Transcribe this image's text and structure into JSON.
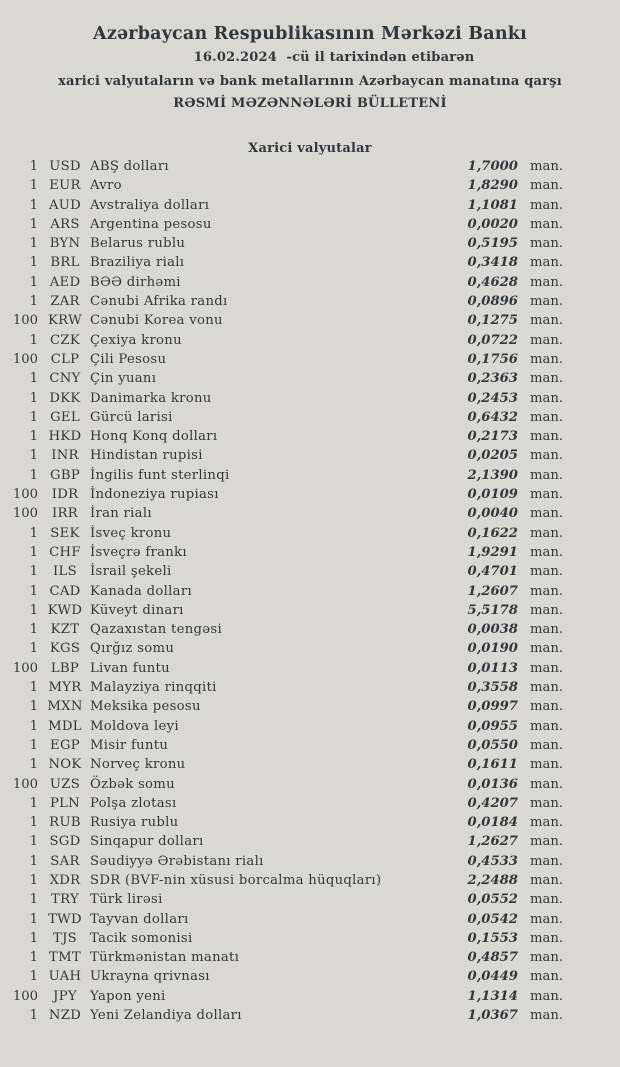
{
  "header": {
    "bank_name": "Azərbaycan Respublikasının Mərkəzi Bankı",
    "date_line": "16.02.2024  -cü il tarixindən etibarən",
    "subtitle_line1": "xarici valyutaların və bank metallarının Azərbaycan manatına qarşı",
    "subtitle_line2": "RƏSMİ MƏZƏNNƏLƏRİ BÜLLETENİ"
  },
  "section": {
    "title": "Xarici valyutalar"
  },
  "colors": {
    "background": "#d9d8d4",
    "text": "#32373c"
  },
  "rates": [
    {
      "qty": "1",
      "code": "USD",
      "name": "ABŞ dolları",
      "rate": "1,7000",
      "unit": "man."
    },
    {
      "qty": "1",
      "code": "EUR",
      "name": "Avro",
      "rate": "1,8290",
      "unit": "man."
    },
    {
      "qty": "1",
      "code": "AUD",
      "name": "Avstraliya dolları",
      "rate": "1,1081",
      "unit": "man."
    },
    {
      "qty": "1",
      "code": "ARS",
      "name": "Argentina pesosu",
      "rate": "0,0020",
      "unit": "man."
    },
    {
      "qty": "1",
      "code": "BYN",
      "name": "Belarus rublu",
      "rate": "0,5195",
      "unit": "man."
    },
    {
      "qty": "1",
      "code": "BRL",
      "name": "Braziliya rialı",
      "rate": "0,3418",
      "unit": "man."
    },
    {
      "qty": "1",
      "code": "AED",
      "name": "BƏƏ dirhəmi",
      "rate": "0,4628",
      "unit": "man."
    },
    {
      "qty": "1",
      "code": "ZAR",
      "name": "Cənubi Afrika randı",
      "rate": "0,0896",
      "unit": "man."
    },
    {
      "qty": "100",
      "code": "KRW",
      "name": "Cənubi Korea vonu",
      "rate": "0,1275",
      "unit": "man."
    },
    {
      "qty": "1",
      "code": "CZK",
      "name": "Çexiya kronu",
      "rate": "0,0722",
      "unit": "man."
    },
    {
      "qty": "100",
      "code": "CLP",
      "name": "Çili Pesosu",
      "rate": "0,1756",
      "unit": "man."
    },
    {
      "qty": "1",
      "code": "CNY",
      "name": "Çin yuanı",
      "rate": "0,2363",
      "unit": "man."
    },
    {
      "qty": "1",
      "code": "DKK",
      "name": "Danimarka kronu",
      "rate": "0,2453",
      "unit": "man."
    },
    {
      "qty": "1",
      "code": "GEL",
      "name": "Gürcü larisi",
      "rate": "0,6432",
      "unit": "man."
    },
    {
      "qty": "1",
      "code": "HKD",
      "name": "Honq Konq dolları",
      "rate": "0,2173",
      "unit": "man."
    },
    {
      "qty": "1",
      "code": "INR",
      "name": "Hindistan rupisi",
      "rate": "0,0205",
      "unit": "man."
    },
    {
      "qty": "1",
      "code": "GBP",
      "name": "İngilis funt sterlinqi",
      "rate": "2,1390",
      "unit": "man."
    },
    {
      "qty": "100",
      "code": "IDR",
      "name": "İndoneziya rupiası",
      "rate": "0,0109",
      "unit": "man."
    },
    {
      "qty": "100",
      "code": "IRR",
      "name": "İran rialı",
      "rate": "0,0040",
      "unit": "man."
    },
    {
      "qty": "1",
      "code": "SEK",
      "name": "İsveç kronu",
      "rate": "0,1622",
      "unit": "man."
    },
    {
      "qty": "1",
      "code": "CHF",
      "name": "İsveçrə frankı",
      "rate": "1,9291",
      "unit": "man."
    },
    {
      "qty": "1",
      "code": "ILS",
      "name": "İsrail şekeli",
      "rate": "0,4701",
      "unit": "man."
    },
    {
      "qty": "1",
      "code": "CAD",
      "name": "Kanada dolları",
      "rate": "1,2607",
      "unit": "man."
    },
    {
      "qty": "1",
      "code": "KWD",
      "name": "Küveyt dinarı",
      "rate": "5,5178",
      "unit": "man."
    },
    {
      "qty": "1",
      "code": "KZT",
      "name": "Qazaxıstan tengəsi",
      "rate": "0,0038",
      "unit": "man."
    },
    {
      "qty": "1",
      "code": "KGS",
      "name": "Qırğız somu",
      "rate": "0,0190",
      "unit": "man."
    },
    {
      "qty": "100",
      "code": "LBP",
      "name": "Livan funtu",
      "rate": "0,0113",
      "unit": "man."
    },
    {
      "qty": "1",
      "code": "MYR",
      "name": "Malayziya rinqqiti",
      "rate": "0,3558",
      "unit": "man."
    },
    {
      "qty": "1",
      "code": "MXN",
      "name": "Meksika pesosu",
      "rate": "0,0997",
      "unit": "man."
    },
    {
      "qty": "1",
      "code": "MDL",
      "name": "Moldova leyi",
      "rate": "0,0955",
      "unit": "man."
    },
    {
      "qty": "1",
      "code": "EGP",
      "name": "Misir funtu",
      "rate": "0,0550",
      "unit": "man."
    },
    {
      "qty": "1",
      "code": "NOK",
      "name": "Norveç kronu",
      "rate": "0,1611",
      "unit": "man."
    },
    {
      "qty": "100",
      "code": "UZS",
      "name": "Özbək somu",
      "rate": "0,0136",
      "unit": "man."
    },
    {
      "qty": "1",
      "code": "PLN",
      "name": "Polşa zlotası",
      "rate": "0,4207",
      "unit": "man."
    },
    {
      "qty": "1",
      "code": "RUB",
      "name": "Rusiya rublu",
      "rate": "0,0184",
      "unit": "man."
    },
    {
      "qty": "1",
      "code": "SGD",
      "name": "Sinqapur dolları",
      "rate": "1,2627",
      "unit": "man."
    },
    {
      "qty": "1",
      "code": "SAR",
      "name": "Səudiyyə Ərəbistanı rialı",
      "rate": "0,4533",
      "unit": "man."
    },
    {
      "qty": "1",
      "code": "XDR",
      "name": "SDR (BVF-nin xüsusi borcalma hüquqları)",
      "rate": "2,2488",
      "unit": "man."
    },
    {
      "qty": "1",
      "code": "TRY",
      "name": "Türk lirəsi",
      "rate": "0,0552",
      "unit": "man."
    },
    {
      "qty": "1",
      "code": "TWD",
      "name": "Tayvan dolları",
      "rate": "0,0542",
      "unit": "man."
    },
    {
      "qty": "1",
      "code": "TJS",
      "name": "Tacik somonisi",
      "rate": "0,1553",
      "unit": "man."
    },
    {
      "qty": "1",
      "code": "TMT",
      "name": "Türkmənistan manatı",
      "rate": "0,4857",
      "unit": "man."
    },
    {
      "qty": "1",
      "code": "UAH",
      "name": "Ukrayna qrivnası",
      "rate": "0,0449",
      "unit": "man."
    },
    {
      "qty": "100",
      "code": "JPY",
      "name": "Yapon yeni",
      "rate": "1,1314",
      "unit": "man."
    },
    {
      "qty": "1",
      "code": "NZD",
      "name": "Yeni Zelandiya dolları",
      "rate": "1,0367",
      "unit": "man."
    }
  ]
}
